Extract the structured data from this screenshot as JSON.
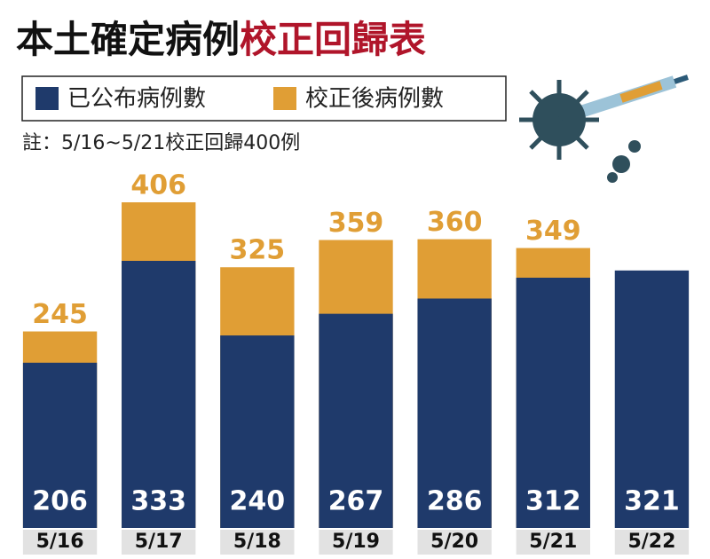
{
  "chart_data": {
    "type": "bar",
    "overlap": true,
    "title": "本土確定病例",
    "title_highlight": "校正回歸表",
    "note": "註：5/16~5/21校正回歸400例",
    "categories": [
      "5/16",
      "5/17",
      "5/18",
      "5/19",
      "5/20",
      "5/21",
      "5/22"
    ],
    "series": [
      {
        "name": "已公布病例數",
        "color": "#1f3a6b",
        "values": [
          206,
          333,
          240,
          267,
          286,
          312,
          321
        ]
      },
      {
        "name": "校正後病例數",
        "color": "#e09e35",
        "values": [
          245,
          406,
          325,
          359,
          360,
          349,
          null
        ]
      }
    ]
  }
}
